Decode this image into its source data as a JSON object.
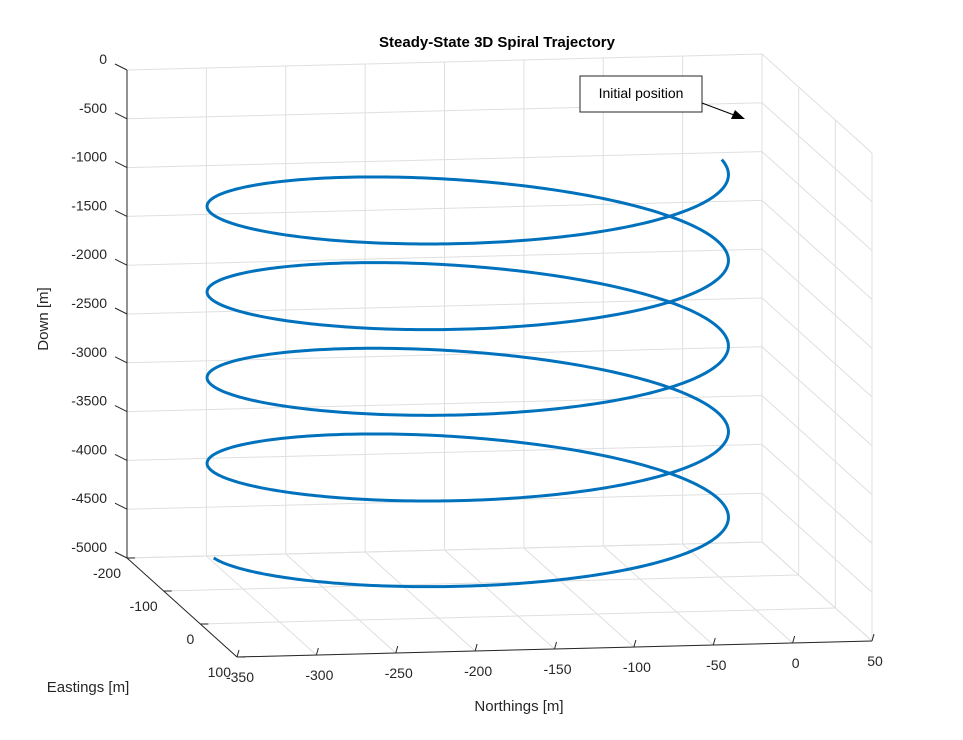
{
  "chart_data": {
    "type": "line",
    "title": "Steady-State 3D Spiral Trajectory",
    "xlabel": "Northings [m]",
    "ylabel": "Eastings [m]",
    "zlabel": "Down [m]",
    "x_ticks": [
      "-350",
      "-300",
      "-250",
      "-200",
      "-150",
      "-100",
      "-50",
      "0",
      "50"
    ],
    "y_ticks": [
      "-200",
      "-100",
      "0",
      "100"
    ],
    "z_ticks": [
      "0",
      "-500",
      "-1000",
      "-1500",
      "-2000",
      "-2500",
      "-3000",
      "-3500",
      "-4000",
      "-4500",
      "-5000"
    ],
    "xlim": [
      -350,
      50
    ],
    "ylim": [
      -200,
      100
    ],
    "zlim": [
      -5000,
      0
    ],
    "grid": true,
    "series": [
      {
        "color": "#0072bd",
        "helix": {
          "center_northings": -170,
          "center_eastings": -50,
          "radius": 160,
          "down_start": -550,
          "down_end": -4500,
          "turns": 4.5
        }
      }
    ],
    "annotation": {
      "text": "Initial position",
      "points_to": {
        "northings": -10,
        "eastings": -50,
        "down": -550
      }
    }
  }
}
